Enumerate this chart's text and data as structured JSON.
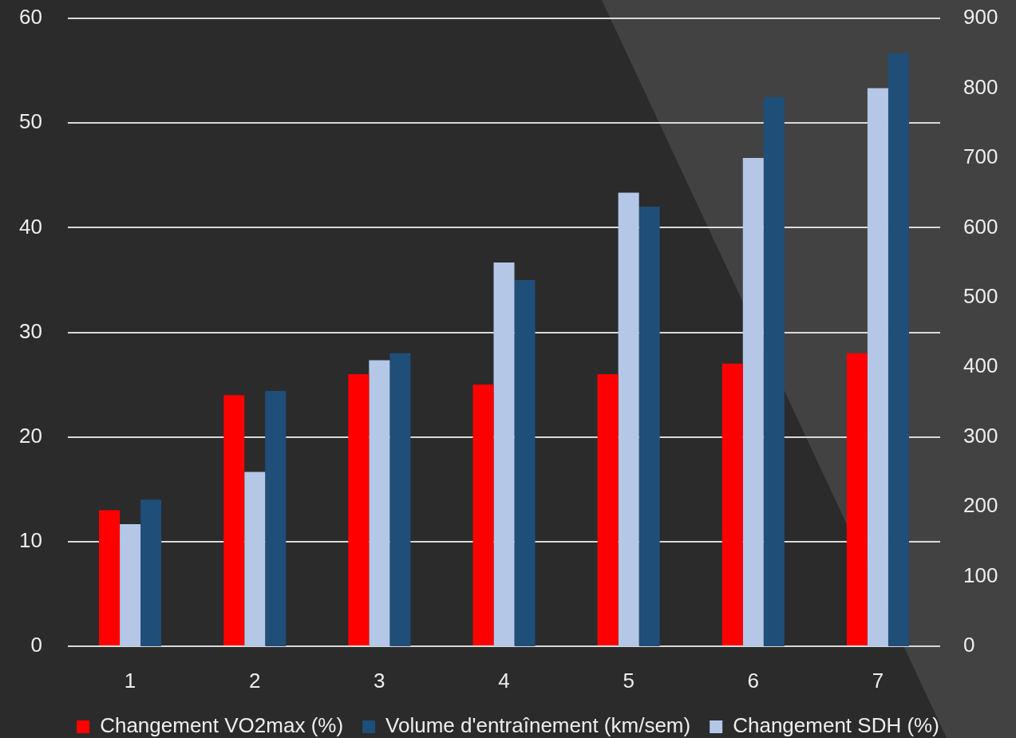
{
  "chart_data": {
    "type": "bar",
    "categories": [
      "1",
      "2",
      "3",
      "4",
      "5",
      "6",
      "7"
    ],
    "series": [
      {
        "name": "Changement VO2max (%)",
        "color": "#ff0000",
        "values": [
          13,
          24,
          26,
          25,
          26,
          27,
          28
        ]
      },
      {
        "name": "Volume d'entraînement (km/sem)",
        "color": "#1f4e79",
        "axis": "y2",
        "values": [
          210,
          366,
          420,
          525,
          630,
          787,
          850
        ]
      },
      {
        "name": "Changement SDH (%)",
        "color": "#b4c7e7",
        "axis": "y2",
        "values": [
          175,
          250,
          410,
          550,
          650,
          700,
          800
        ]
      }
    ],
    "ylim": [
      0,
      60
    ],
    "yticks": [
      0,
      10,
      20,
      30,
      40,
      50,
      60
    ],
    "y2lim": [
      0,
      900
    ],
    "y2ticks": [
      0,
      100,
      200,
      300,
      400,
      500,
      600,
      700,
      800,
      900
    ],
    "grid": "y",
    "legend": "bottom"
  }
}
